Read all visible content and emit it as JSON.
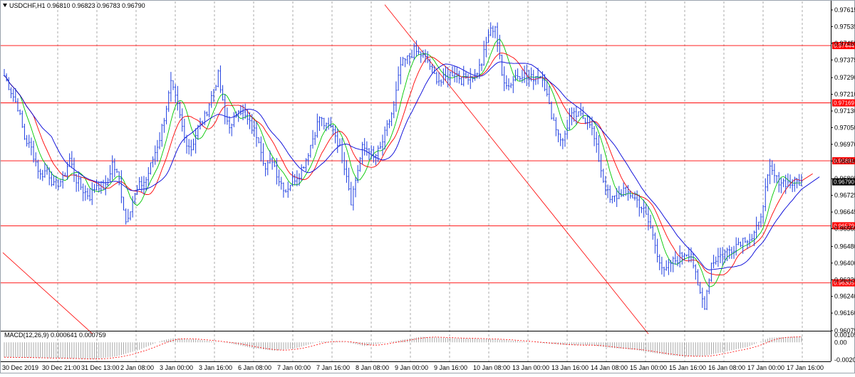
{
  "header": {
    "symbol": "USDCHF,H1",
    "ohlc": "0.96810 0.96823 0.96783 0.96790"
  },
  "macd": {
    "label": "MACD(12,26,9) 0.000641 0.000759",
    "ticks": [
      "0.001092",
      "0.00",
      "-0.002044"
    ]
  },
  "chart_data": [
    {
      "type": "line",
      "title": "",
      "ylim": [
        0.96075,
        0.97615
      ],
      "y_ticks": [
        "0.97615",
        "0.97535",
        "0.97455",
        "0.97375",
        "0.97290",
        "0.97210",
        "0.97130",
        "0.97050",
        "0.96970",
        "0.96890",
        "0.96805",
        "0.96725",
        "0.96645",
        "0.96565",
        "0.96480",
        "0.96400",
        "0.96320",
        "0.96240",
        "0.96160",
        "0.96075"
      ],
      "x_ticks": [
        "30 Dec 2019",
        "30 Dec 21:00",
        "31 Dec 13:00",
        "2 Jan 08:00",
        "3 Jan 00:00",
        "3 Jan 16:00",
        "6 Jan 08:00",
        "7 Jan 00:00",
        "7 Jan 16:00",
        "8 Jan 08:00",
        "9 Jan 00:00",
        "9 Jan 16:00",
        "10 Jan 08:00",
        "13 Jan 00:00",
        "13 Jan 16:00",
        "14 Jan 08:00",
        "15 Jan 00:00",
        "15 Jan 16:00",
        "16 Jan 08:00",
        "17 Jan 00:00",
        "17 Jan 16:00"
      ],
      "current_price": "0.96790",
      "horizontal_levels": [
        "0.97444",
        "0.97169",
        "0.96891",
        "0.96579",
        "0.96305"
      ],
      "grid": true,
      "anchors": [
        [
          0,
          0.973
        ],
        [
          6,
          0.9715
        ],
        [
          9,
          0.97
        ],
        [
          12,
          0.9695
        ],
        [
          16,
          0.9682
        ],
        [
          19,
          0.9685
        ],
        [
          22,
          0.9677
        ],
        [
          26,
          0.968
        ],
        [
          29,
          0.969
        ],
        [
          32,
          0.968
        ],
        [
          35,
          0.9675
        ],
        [
          38,
          0.9672
        ],
        [
          41,
          0.9678
        ],
        [
          45,
          0.9676
        ],
        [
          48,
          0.9688
        ],
        [
          51,
          0.968
        ],
        [
          54,
          0.966
        ],
        [
          57,
          0.967
        ],
        [
          60,
          0.9677
        ],
        [
          63,
          0.968
        ],
        [
          66,
          0.969
        ],
        [
          69,
          0.97
        ],
        [
          72,
          0.9715
        ],
        [
          74,
          0.9726
        ],
        [
          77,
          0.9715
        ],
        [
          80,
          0.97
        ],
        [
          83,
          0.9695
        ],
        [
          86,
          0.9705
        ],
        [
          89,
          0.971
        ],
        [
          92,
          0.972
        ],
        [
          95,
          0.973
        ],
        [
          98,
          0.971
        ],
        [
          101,
          0.9705
        ],
        [
          104,
          0.9715
        ],
        [
          107,
          0.971
        ],
        [
          110,
          0.9705
        ],
        [
          113,
          0.97
        ],
        [
          116,
          0.9685
        ],
        [
          119,
          0.969
        ],
        [
          122,
          0.968
        ],
        [
          125,
          0.9675
        ],
        [
          128,
          0.968
        ],
        [
          131,
          0.9683
        ],
        [
          134,
          0.969
        ],
        [
          137,
          0.97
        ],
        [
          140,
          0.971
        ],
        [
          143,
          0.9705
        ],
        [
          146,
          0.9705
        ],
        [
          149,
          0.9695
        ],
        [
          152,
          0.9683
        ],
        [
          154,
          0.967
        ],
        [
          156,
          0.968
        ],
        [
          159,
          0.9695
        ],
        [
          162,
          0.9695
        ],
        [
          164,
          0.969
        ],
        [
          167,
          0.9695
        ],
        [
          170,
          0.9705
        ],
        [
          173,
          0.9715
        ],
        [
          176,
          0.9735
        ],
        [
          179,
          0.9738
        ],
        [
          182,
          0.9742
        ],
        [
          185,
          0.974
        ],
        [
          188,
          0.9737
        ],
        [
          191,
          0.973
        ],
        [
          194,
          0.9727
        ],
        [
          197,
          0.973
        ],
        [
          200,
          0.9732
        ],
        [
          203,
          0.9728
        ],
        [
          206,
          0.973
        ],
        [
          209,
          0.973
        ],
        [
          212,
          0.9736
        ],
        [
          215,
          0.975
        ],
        [
          218,
          0.9754
        ],
        [
          221,
          0.973
        ],
        [
          224,
          0.9725
        ],
        [
          227,
          0.973
        ],
        [
          230,
          0.9731
        ],
        [
          233,
          0.9728
        ],
        [
          236,
          0.973
        ],
        [
          239,
          0.973
        ],
        [
          242,
          0.9715
        ],
        [
          245,
          0.9705
        ],
        [
          248,
          0.9698
        ],
        [
          251,
          0.971
        ],
        [
          254,
          0.9711
        ],
        [
          257,
          0.971
        ],
        [
          260,
          0.9708
        ],
        [
          263,
          0.9695
        ],
        [
          266,
          0.968
        ],
        [
          269,
          0.967
        ],
        [
          272,
          0.9672
        ],
        [
          275,
          0.9675
        ],
        [
          278,
          0.9673
        ],
        [
          281,
          0.967
        ],
        [
          284,
          0.9665
        ],
        [
          287,
          0.9657
        ],
        [
          290,
          0.9645
        ],
        [
          293,
          0.9635
        ],
        [
          296,
          0.964
        ],
        [
          299,
          0.9642
        ],
        [
          302,
          0.9645
        ],
        [
          305,
          0.9645
        ],
        [
          308,
          0.9628
        ],
        [
          311,
          0.962
        ],
        [
          314,
          0.964
        ],
        [
          317,
          0.9643
        ],
        [
          320,
          0.9645
        ],
        [
          323,
          0.9647
        ],
        [
          326,
          0.965
        ],
        [
          329,
          0.9652
        ],
        [
          332,
          0.9652
        ],
        [
          335,
          0.9658
        ],
        [
          338,
          0.9675
        ],
        [
          340,
          0.9685
        ],
        [
          343,
          0.968
        ],
        [
          346,
          0.9679
        ],
        [
          349,
          0.9678
        ],
        [
          352,
          0.9679
        ],
        [
          354,
          0.9679
        ]
      ]
    },
    {
      "type": "bar",
      "title": "MACD(12,26,9) 0.000641 0.000759",
      "ylim": [
        -0.002044,
        0.001092
      ],
      "y_ticks": [
        "0.001092",
        "0.00",
        "-0.002044"
      ],
      "anchors": [
        [
          0,
          -0.0016
        ],
        [
          20,
          -0.0017
        ],
        [
          40,
          -0.0018
        ],
        [
          50,
          -0.0015
        ],
        [
          60,
          -0.0008
        ],
        [
          70,
          0.0002
        ],
        [
          75,
          0.00045
        ],
        [
          85,
          0.0003
        ],
        [
          100,
          -0.0001
        ],
        [
          110,
          -0.0006
        ],
        [
          120,
          -0.0009
        ],
        [
          130,
          -0.0006
        ],
        [
          140,
          0.0001
        ],
        [
          150,
          0.0001
        ],
        [
          160,
          -0.0004
        ],
        [
          170,
          0.0
        ],
        [
          185,
          0.0006
        ],
        [
          200,
          0.00045
        ],
        [
          210,
          0.0004
        ],
        [
          220,
          0.0003
        ],
        [
          230,
          0.0001
        ],
        [
          240,
          -0.0001
        ],
        [
          250,
          -0.0003
        ],
        [
          260,
          -0.0003
        ],
        [
          270,
          -0.0006
        ],
        [
          280,
          -0.0008
        ],
        [
          290,
          -0.0012
        ],
        [
          300,
          -0.0015
        ],
        [
          310,
          -0.0015
        ],
        [
          320,
          -0.001
        ],
        [
          330,
          -0.0005
        ],
        [
          340,
          0.0005
        ],
        [
          354,
          0.00064
        ]
      ]
    }
  ]
}
